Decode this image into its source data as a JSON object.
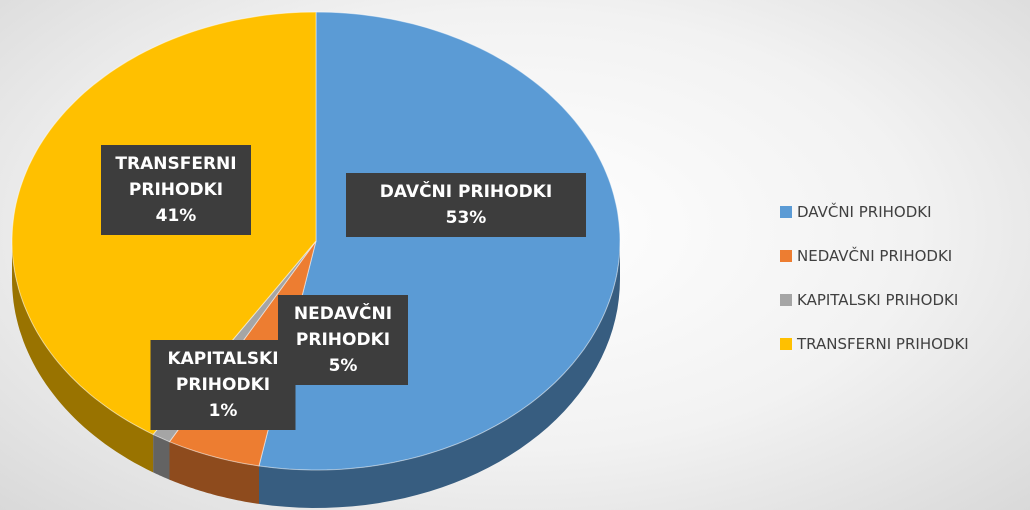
{
  "chart_data": {
    "type": "pie",
    "categories": [
      "DAVČNI PRIHODKI",
      "NEDAVČNI PRIHODKI",
      "KAPITALSKI PRIHODKI",
      "TRANSFERNI PRIHODKI"
    ],
    "values": [
      53,
      5,
      1,
      41
    ],
    "value_labels": [
      "53%",
      "5%",
      "1%",
      "41%"
    ],
    "colors": [
      "#5b9bd5",
      "#ed7d31",
      "#a5a5a5",
      "#ffc000"
    ],
    "legend": "right"
  }
}
